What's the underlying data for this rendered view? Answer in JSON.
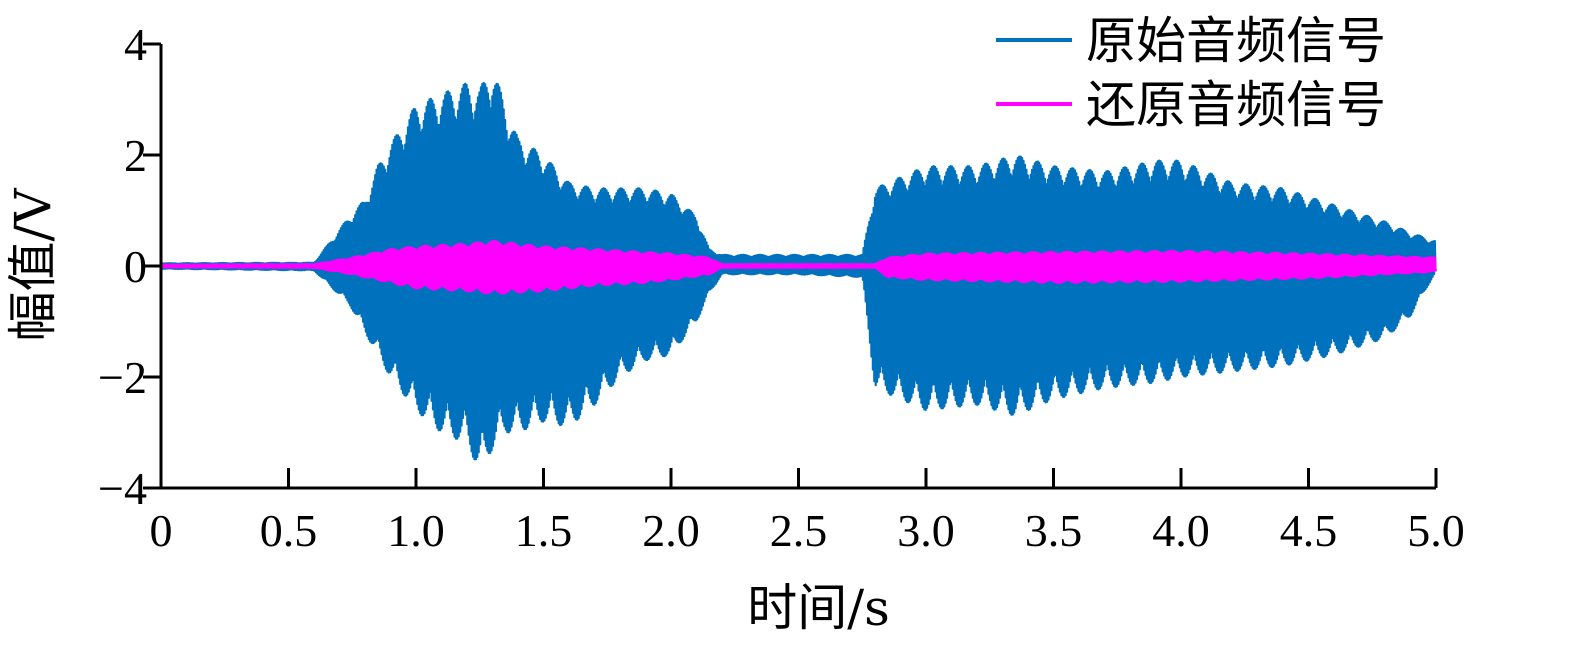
{
  "chart_data": {
    "type": "line",
    "title": "",
    "xlabel": "时间/s",
    "ylabel": "幅值/V",
    "xlim": [
      0,
      5.0
    ],
    "ylim": [
      -4,
      4
    ],
    "x_ticks": [
      0,
      0.5,
      1.0,
      1.5,
      2.0,
      2.5,
      3.0,
      3.5,
      4.0,
      4.5,
      5.0
    ],
    "x_tick_labels": [
      "0",
      "0.5",
      "1.0",
      "1.5",
      "2.0",
      "2.5",
      "3.0",
      "3.5",
      "4.0",
      "4.5",
      "5.0"
    ],
    "y_ticks": [
      -4,
      -2,
      0,
      2,
      4
    ],
    "y_tick_labels": [
      "−4",
      "−2",
      "0",
      "2",
      "4"
    ],
    "grid": false,
    "legend_position": "top-right",
    "series": [
      {
        "name": "原始音频信号",
        "color": "#0072BD",
        "envelope": {
          "x": [
            0,
            0.6,
            0.74,
            0.8,
            0.85,
            0.9,
            1.0,
            1.1,
            1.2,
            1.25,
            1.3,
            1.35,
            1.4,
            1.5,
            1.6,
            1.7,
            1.8,
            1.9,
            2.0,
            2.1,
            2.15,
            2.2,
            2.5,
            2.75,
            2.8,
            2.85,
            3.0,
            3.2,
            3.35,
            3.5,
            3.7,
            3.9,
            4.0,
            4.2,
            4.4,
            4.6,
            4.8,
            4.9,
            5.0
          ],
          "upper": [
            0.05,
            0.06,
            0.9,
            1.2,
            1.8,
            2.2,
            2.9,
            3.1,
            3.3,
            3.2,
            3.6,
            2.9,
            2.3,
            2.0,
            1.5,
            1.4,
            1.4,
            1.4,
            1.3,
            0.9,
            0.3,
            0.2,
            0.2,
            0.2,
            1.4,
            1.5,
            1.8,
            1.8,
            2.0,
            1.8,
            1.7,
            1.9,
            1.9,
            1.5,
            1.4,
            1.1,
            0.8,
            0.6,
            0.45
          ],
          "lower": [
            -0.05,
            -0.08,
            -0.7,
            -1.2,
            -1.6,
            -2.0,
            -2.6,
            -3.0,
            -3.2,
            -3.7,
            -3.3,
            -3.0,
            -3.0,
            -2.8,
            -2.9,
            -2.5,
            -2.0,
            -1.7,
            -1.6,
            -1.0,
            -0.5,
            -0.15,
            -0.15,
            -0.2,
            -2.2,
            -2.3,
            -2.6,
            -2.5,
            -2.7,
            -2.4,
            -2.2,
            -2.1,
            -2.0,
            -1.9,
            -1.8,
            -1.6,
            -1.3,
            -0.9,
            -0.1
          ]
        }
      },
      {
        "name": "还原音频信号",
        "color": "#FF00FF",
        "envelope": {
          "x": [
            0,
            0.6,
            0.75,
            0.9,
            1.0,
            1.2,
            1.3,
            1.5,
            1.7,
            1.9,
            2.0,
            2.15,
            2.2,
            2.8,
            2.85,
            3.0,
            3.5,
            4.0,
            4.5,
            5.0
          ],
          "upper": [
            0.02,
            0.03,
            0.15,
            0.3,
            0.35,
            0.4,
            0.45,
            0.35,
            0.3,
            0.25,
            0.22,
            0.15,
            0.03,
            0.03,
            0.15,
            0.22,
            0.25,
            0.27,
            0.22,
            0.15
          ],
          "lower": [
            -0.02,
            -0.03,
            -0.15,
            -0.3,
            -0.4,
            -0.45,
            -0.5,
            -0.45,
            -0.35,
            -0.3,
            -0.25,
            -0.15,
            -0.03,
            -0.03,
            -0.2,
            -0.25,
            -0.3,
            -0.28,
            -0.22,
            -0.1
          ]
        }
      }
    ]
  }
}
